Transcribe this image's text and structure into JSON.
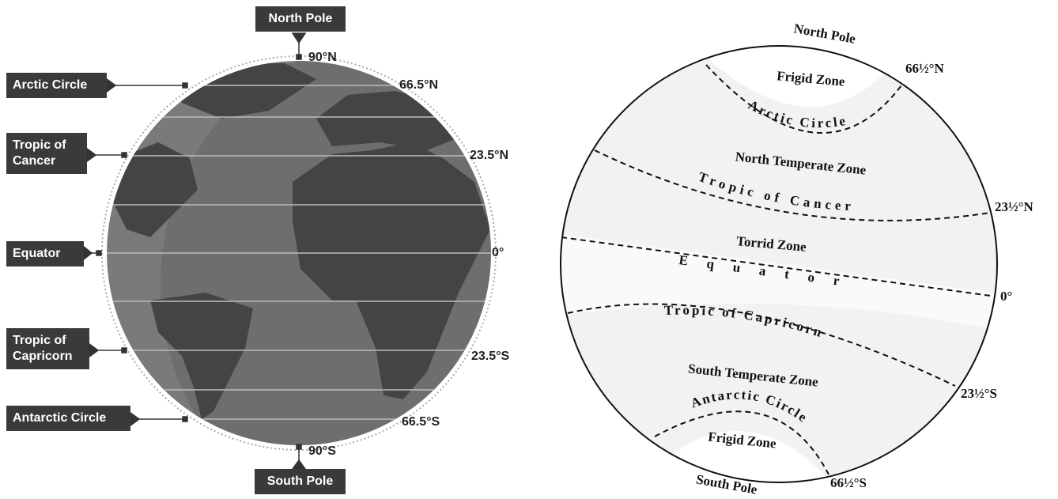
{
  "left": {
    "callouts": {
      "north_pole": "North Pole",
      "arctic_circle": "Arctic Circle",
      "tropic_of_cancer": "Tropic of Cancer",
      "equator": "Equator",
      "tropic_of_capricorn": "Tropic of Capricorn",
      "antarctic_circle": "Antarctic Circle",
      "south_pole": "South Pole"
    },
    "latitudes": {
      "n90": "90°N",
      "n66": "66.5°N",
      "n23": "23.5°N",
      "eq": "0°",
      "s23": "23.5°S",
      "s66": "66.5°S",
      "s90": "90°S"
    }
  },
  "right": {
    "poles": {
      "north": "North Pole",
      "south": "South Pole"
    },
    "zones": {
      "north_frigid": "Frigid Zone",
      "north_temperate": "North Temperate Zone",
      "torrid": "Torrid Zone",
      "south_temperate": "South Temperate Zone",
      "south_frigid": "Frigid Zone"
    },
    "lines": {
      "arctic": "Arctic Circle",
      "cancer": "Tropic of Cancer",
      "equator": "Equator",
      "capricorn": "Tropic of Capricorn",
      "antarctic": "Antarctic Circle"
    },
    "latitudes": {
      "n66": "66½°N",
      "n23": "23½°N",
      "eq": "0°",
      "s23": "23½°S",
      "s66": "66½°S"
    }
  }
}
